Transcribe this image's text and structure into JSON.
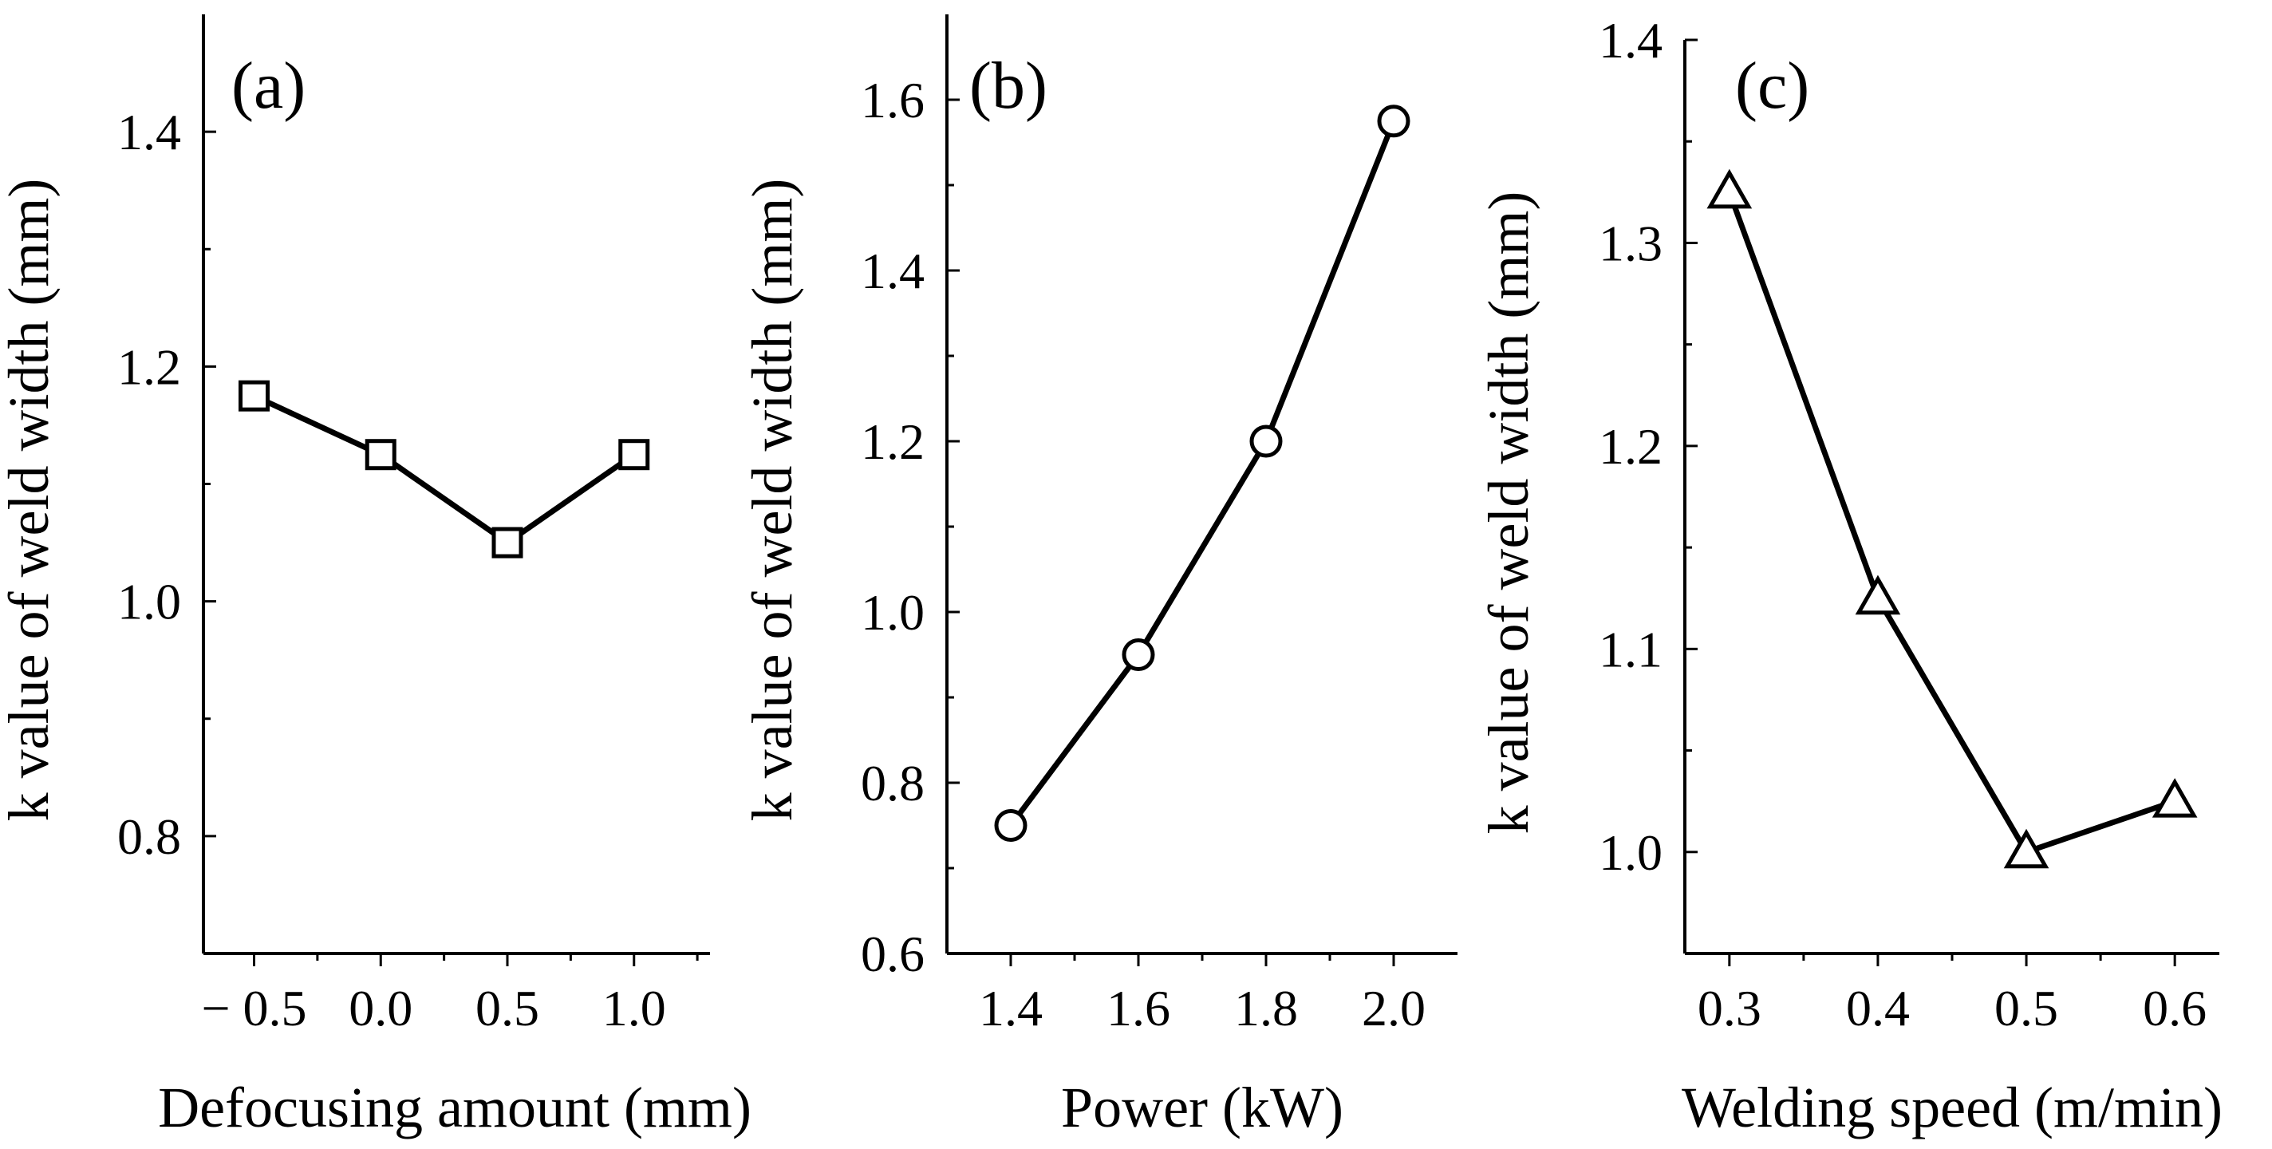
{
  "figure": {
    "background": "#ffffff",
    "ink": "#000000"
  },
  "chart_data": [
    {
      "id": "a",
      "type": "line",
      "panel_label": "(a)",
      "xlabel": "Defocusing amount (mm)",
      "ylabel": "k value of weld width (mm)",
      "x": [
        -0.5,
        0.0,
        0.5,
        1.0
      ],
      "y": [
        1.175,
        1.125,
        1.05,
        1.125
      ],
      "marker": "square",
      "xlim": [
        -0.7,
        1.3
      ],
      "ylim": [
        0.7,
        1.5
      ],
      "xticks": [
        -0.5,
        0.0,
        0.5,
        1.0
      ],
      "xtick_labels": [
        "− 0.5",
        "0.0",
        "0.5",
        "1.0"
      ],
      "yticks": [
        0.8,
        1.0,
        1.2,
        1.4
      ],
      "ytick_labels": [
        "0.8",
        "1.0",
        "1.2",
        "1.4"
      ]
    },
    {
      "id": "b",
      "type": "line",
      "panel_label": "(b)",
      "xlabel": "Power (kW)",
      "ylabel": "k value of weld width (mm)",
      "x": [
        1.4,
        1.6,
        1.8,
        2.0
      ],
      "y": [
        0.75,
        0.95,
        1.2,
        1.575
      ],
      "marker": "circle",
      "xlim": [
        1.3,
        2.1
      ],
      "ylim": [
        0.6,
        1.7
      ],
      "xticks": [
        1.4,
        1.6,
        1.8,
        2.0
      ],
      "xtick_labels": [
        "1.4",
        "1.6",
        "1.8",
        "2.0"
      ],
      "yticks": [
        0.6,
        0.8,
        1.0,
        1.2,
        1.4,
        1.6
      ],
      "ytick_labels": [
        "0.6",
        "0.8",
        "1.0",
        "1.2",
        "1.4",
        "1.6"
      ]
    },
    {
      "id": "c",
      "type": "line",
      "panel_label": "(c)",
      "xlabel": "Welding speed (m/min)",
      "ylabel": "k value of weld width (mm)",
      "x": [
        0.3,
        0.4,
        0.5,
        0.6
      ],
      "y": [
        1.325,
        1.125,
        1.0,
        1.025
      ],
      "marker": "triangle",
      "xlim": [
        0.27,
        0.63
      ],
      "ylim": [
        0.95,
        1.4
      ],
      "xticks": [
        0.3,
        0.4,
        0.5,
        0.6
      ],
      "xtick_labels": [
        "0.3",
        "0.4",
        "0.5",
        "0.6"
      ],
      "yticks": [
        1.0,
        1.1,
        1.2,
        1.3,
        1.4
      ],
      "ytick_labels": [
        "1.0",
        "1.1",
        "1.2",
        "1.3",
        "1.4"
      ]
    }
  ]
}
